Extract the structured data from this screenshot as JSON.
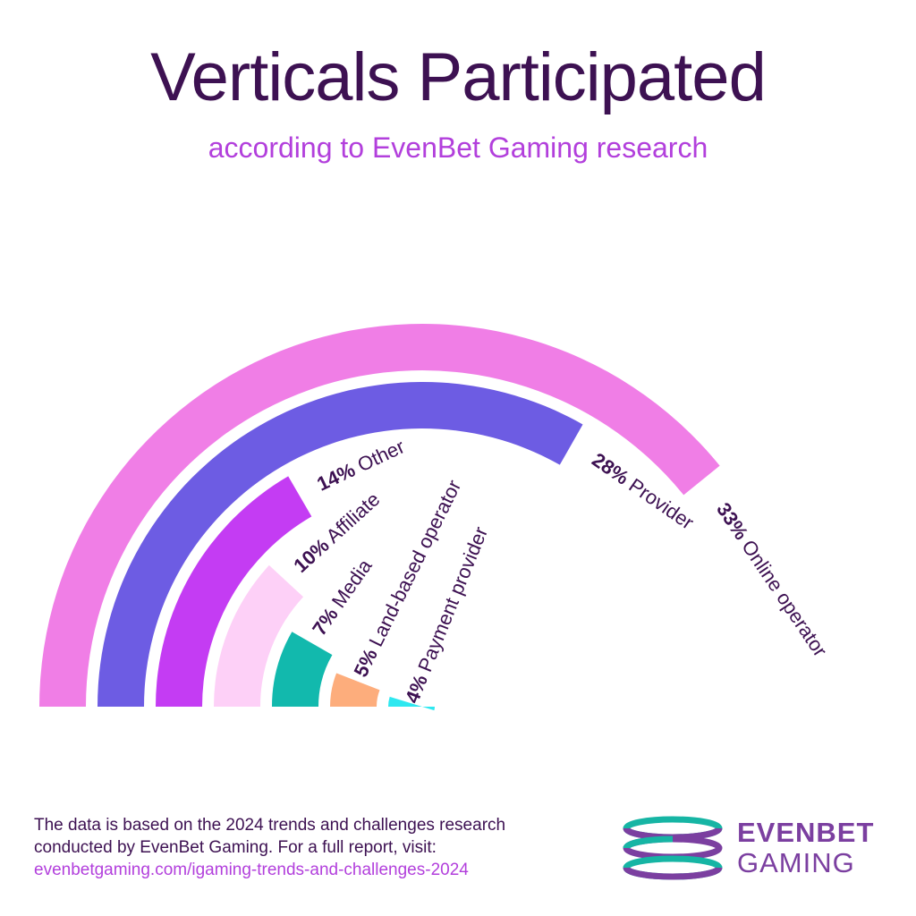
{
  "header": {
    "title": "Verticals Participated",
    "subtitle": "according to EvenBet Gaming research"
  },
  "chart_data": {
    "type": "radial-bar",
    "series": [
      {
        "name": "Online operator",
        "percent": "33%",
        "value": 33,
        "color": "#f07ee6"
      },
      {
        "name": "Provider",
        "percent": "28%",
        "value": 28,
        "color": "#6d5ce3"
      },
      {
        "name": "Other",
        "percent": "14%",
        "value": 14,
        "color": "#c43cf3"
      },
      {
        "name": "Affiliate",
        "percent": "10%",
        "value": 10,
        "color": "#fdd0f7"
      },
      {
        "name": "Media",
        "percent": "7%",
        "value": 7,
        "color": "#12b9ad"
      },
      {
        "name": "Land-based operator",
        "percent": "5%",
        "value": 5,
        "color": "#fdad7c"
      },
      {
        "name": "Payment provider",
        "percent": "4%",
        "value": 4,
        "color": "#2ee8f0"
      }
    ]
  },
  "footer": {
    "line1": "The data is based on the 2024 trends and challenges research",
    "line2": "conducted by EvenBet Gaming. For a full report, visit:",
    "link": "evenbetgaming.com/igaming-trends-and-challenges-2024"
  },
  "logo": {
    "line1": "EVENBET",
    "line2": "GAMING",
    "colors": {
      "purple": "#7b3fa0",
      "teal": "#16b5a4"
    }
  }
}
